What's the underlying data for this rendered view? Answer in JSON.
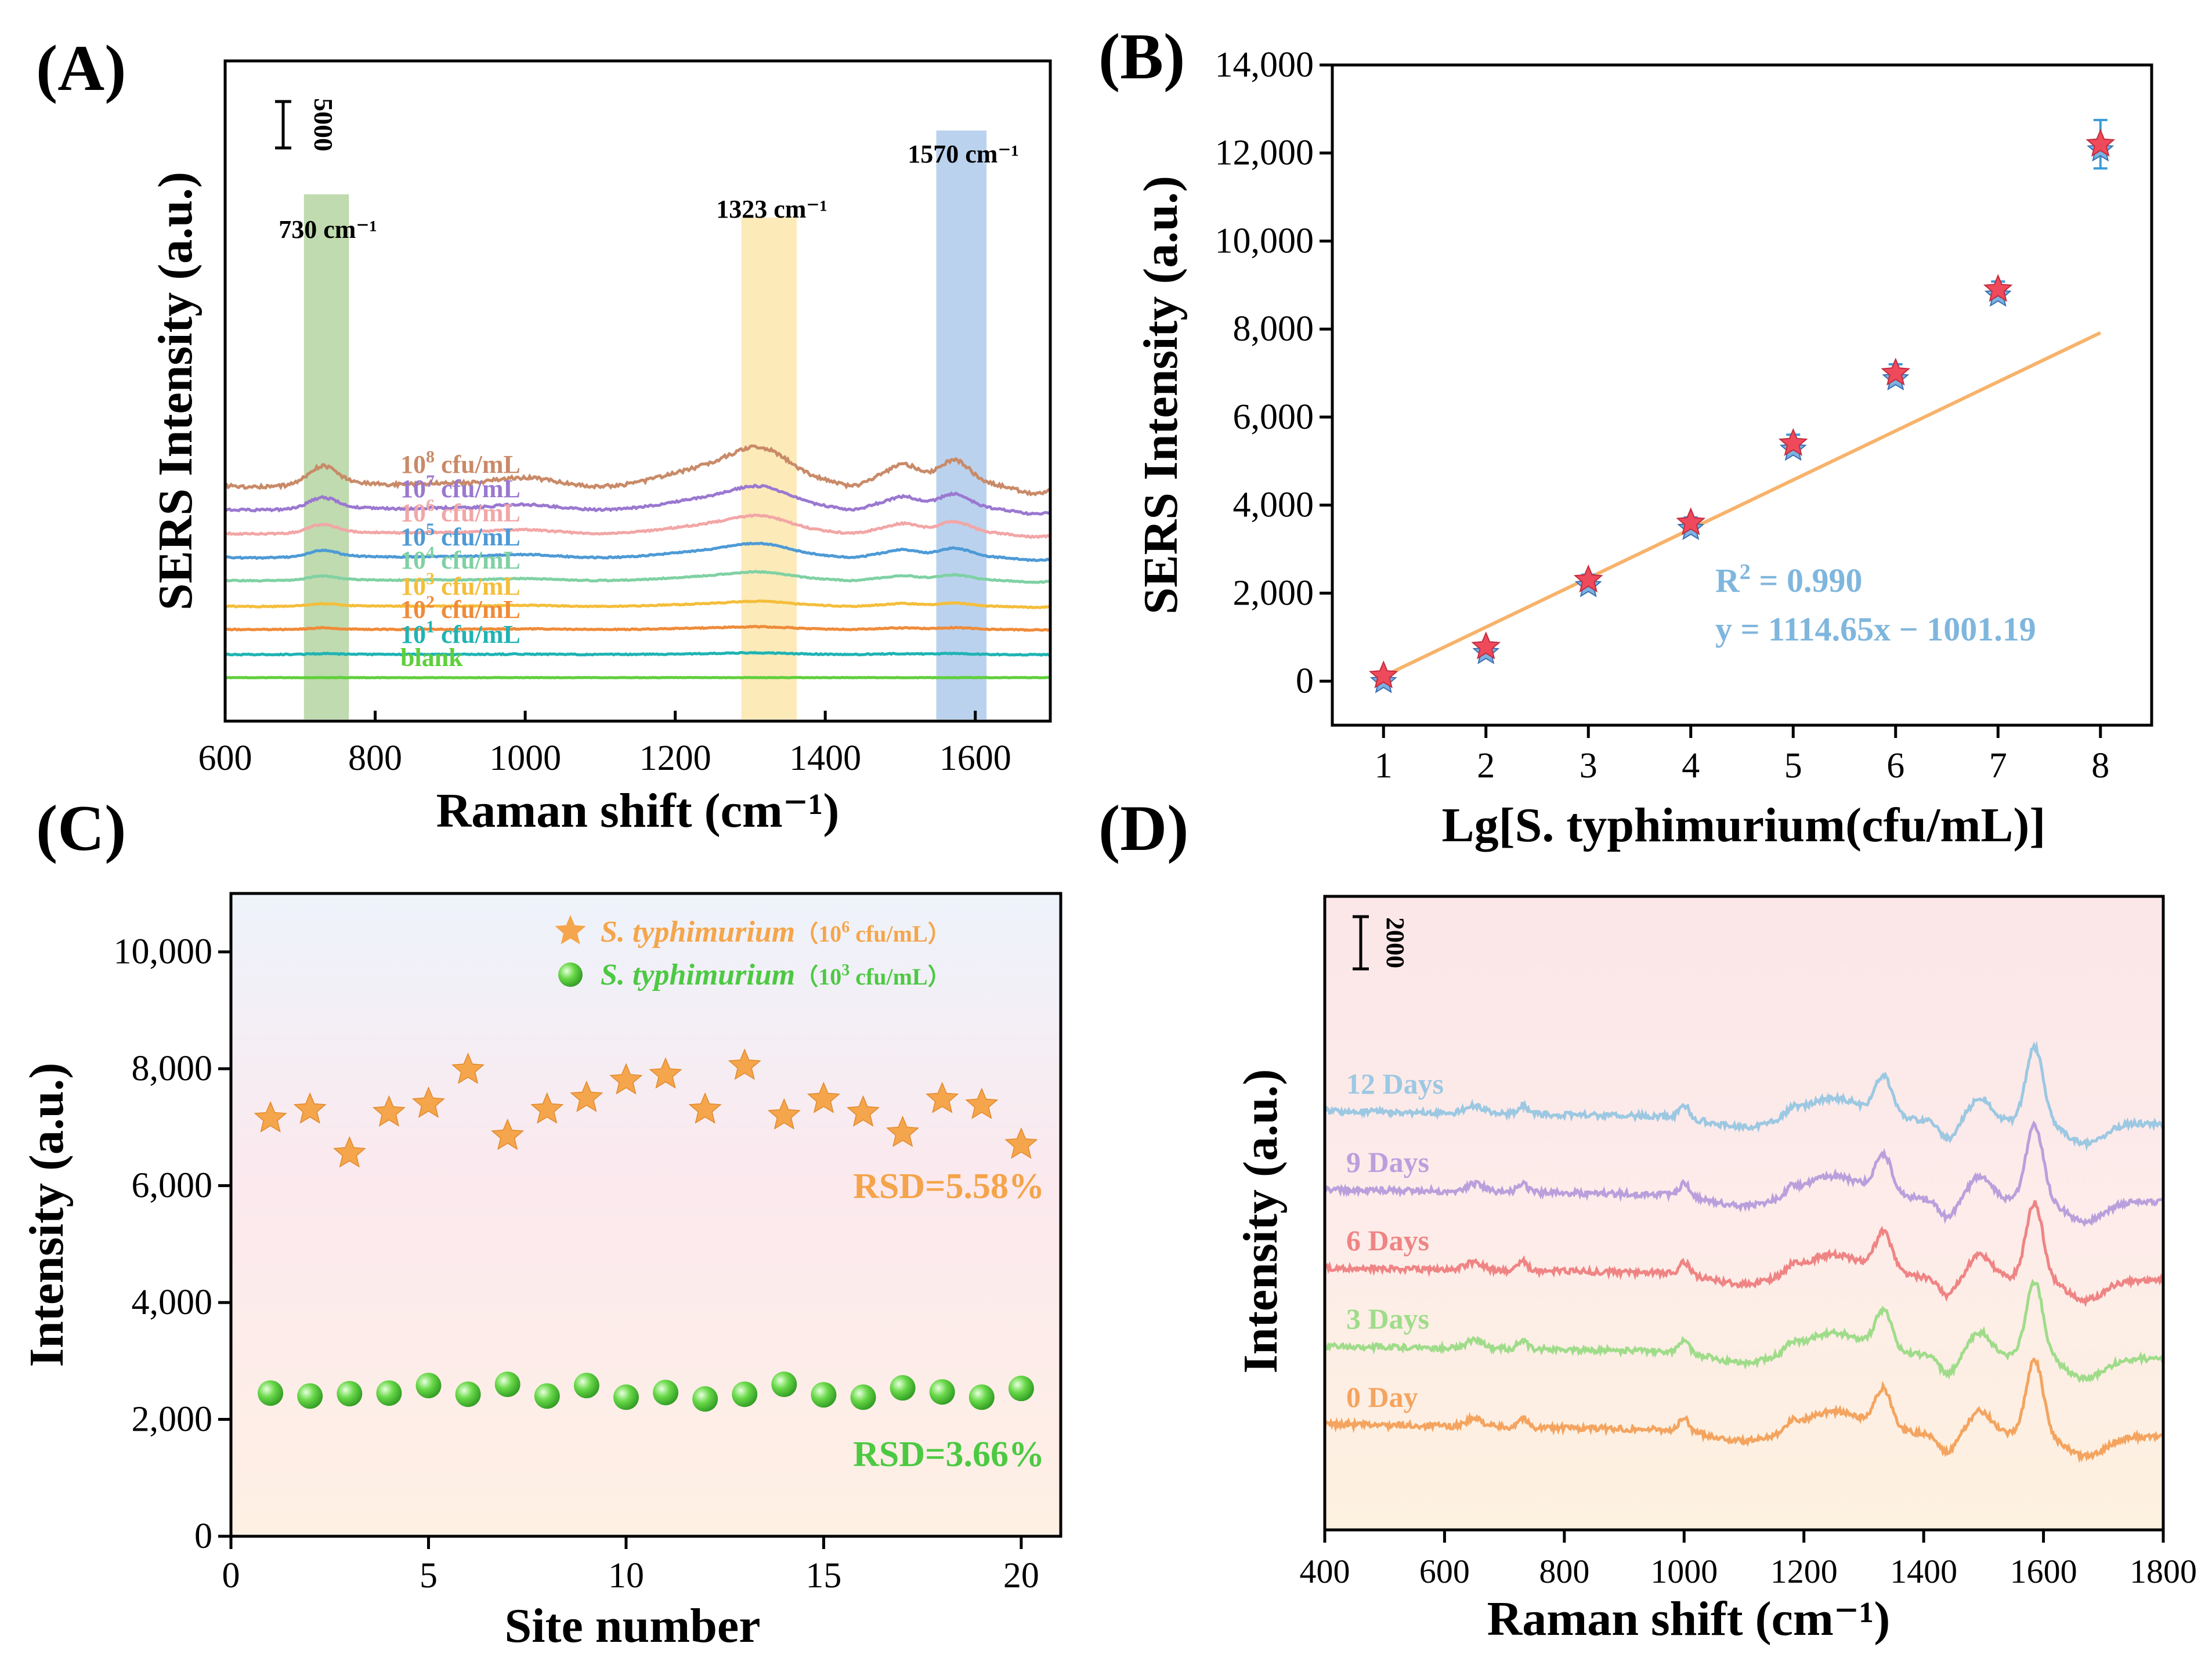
{
  "colors": {
    "green_band": "#a9cf94",
    "yellow_band": "#fbe3a1",
    "blue_band": "#a3c3e8",
    "fit_line": "#f7b36b",
    "stats_blue": "#7fb6dd",
    "star_orange": "#f5a54b",
    "ball_green": "#6ad94a",
    "rsd_orange": "#f4a44a",
    "rsd_green": "#4cc942"
  },
  "chart_data": [
    {
      "panel": "(A)",
      "type": "line",
      "xlabel": "Raman shift (cm⁻¹)",
      "ylabel": "SERS Intensity (a.u.)",
      "xlim": [
        600,
        1700
      ],
      "xticks": [
        "600",
        "800",
        "1000",
        "1200",
        "1400",
        "1600"
      ],
      "scale_bar_label": "5000",
      "scale_bar_value": 5000,
      "bands": [
        {
          "label": "730 cm⁻¹",
          "center": 730,
          "range": [
            705,
            765
          ],
          "color": "#a9cf94"
        },
        {
          "label": "1323 cm⁻¹",
          "center": 1323,
          "range": [
            1288,
            1362
          ],
          "color": "#fbe3a1"
        },
        {
          "label": "1570 cm⁻¹",
          "center": 1570,
          "range": [
            1548,
            1615
          ],
          "color": "#a3c3e8"
        }
      ],
      "series": [
        {
          "name": "blank",
          "base": "",
          "exp": "",
          "unit": "blank",
          "color": "#5fcf3a",
          "offset": 0,
          "amp": 0.0
        },
        {
          "name": "10^1 cfu/mL",
          "base": "10",
          "exp": "1",
          "unit": "cfu/mL",
          "color": "#1fb3b3",
          "offset": 2500,
          "amp": 0.04
        },
        {
          "name": "10^2 cfu/mL",
          "base": "10",
          "exp": "2",
          "unit": "cfu/mL",
          "color": "#ef8b3a",
          "offset": 5200,
          "amp": 0.07
        },
        {
          "name": "10^3 cfu/mL",
          "base": "10",
          "exp": "3",
          "unit": "cfu/mL",
          "color": "#f4be3a",
          "offset": 7700,
          "amp": 0.13
        },
        {
          "name": "10^4 cfu/mL",
          "base": "10",
          "exp": "4",
          "unit": "cfu/mL",
          "color": "#7fd1a3",
          "offset": 10500,
          "amp": 0.22
        },
        {
          "name": "10^5 cfu/mL",
          "base": "10",
          "exp": "5",
          "unit": "cfu/mL",
          "color": "#4d9ad6",
          "offset": 13000,
          "amp": 0.36
        },
        {
          "name": "10^6 cfu/mL",
          "base": "10",
          "exp": "6",
          "unit": "cfu/mL",
          "color": "#f2a6a6",
          "offset": 15600,
          "amp": 0.46
        },
        {
          "name": "10^7 cfu/mL",
          "base": "10",
          "exp": "7",
          "unit": "cfu/mL",
          "color": "#9a78d0",
          "offset": 18200,
          "amp": 0.6
        },
        {
          "name": "10^8 cfu/mL",
          "base": "10",
          "exp": "8",
          "unit": "cfu/mL",
          "color": "#c98a68",
          "offset": 20800,
          "amp": 1.0
        }
      ]
    },
    {
      "panel": "(B)",
      "type": "scatter",
      "xlabel": "Lg[S. typhimurium(cfu/mL)]",
      "ylabel": "SERS Intensity (a.u.)",
      "xlim": [
        0.5,
        8.5
      ],
      "ylim": [
        -1000,
        14000
      ],
      "xticks": [
        "1",
        "2",
        "3",
        "4",
        "5",
        "6",
        "7",
        "8"
      ],
      "yticks": [
        "0",
        "2,000",
        "4,000",
        "6,000",
        "8,000",
        "10,000",
        "12,000",
        "14,000"
      ],
      "ytick_values": [
        0,
        2000,
        4000,
        6000,
        8000,
        10000,
        12000,
        14000
      ],
      "x": [
        1,
        2,
        3,
        4,
        5,
        6,
        7,
        8
      ],
      "y": [
        120,
        780,
        2300,
        3600,
        5400,
        7000,
        8900,
        12200
      ],
      "yerr": [
        100,
        100,
        120,
        120,
        200,
        200,
        180,
        550
      ],
      "fit": {
        "slope": 1114.65,
        "intercept": -1001.19,
        "x_range": [
          1,
          8
        ]
      },
      "r2_base": "R",
      "r2_exp": "2",
      "r2_value": " = 0.990",
      "equation": "y = 1114.65x − 1001.19"
    },
    {
      "panel": "(C)",
      "type": "scatter",
      "xlabel": "Site number",
      "ylabel": "Intensity (a.u.)",
      "xlim": [
        0,
        21
      ],
      "ylim": [
        0,
        11000
      ],
      "xticks": [
        "0",
        "5",
        "10",
        "15",
        "20"
      ],
      "xtick_values": [
        0,
        5,
        10,
        15,
        20
      ],
      "yticks": [
        "0",
        "2,000",
        "4,000",
        "6,000",
        "8,000",
        "10,000"
      ],
      "ytick_values": [
        0,
        2000,
        4000,
        6000,
        8000,
        10000
      ],
      "x": [
        1,
        2,
        3,
        4,
        5,
        6,
        7,
        8,
        9,
        10,
        11,
        12,
        13,
        14,
        15,
        16,
        17,
        18,
        19,
        20
      ],
      "series": [
        {
          "name": "S. typhimurium",
          "conc_open": "（10",
          "conc_exp": "6",
          "conc_close": " cfu/mL）",
          "marker": "star",
          "values": [
            7150,
            7300,
            6550,
            7250,
            7400,
            7980,
            6850,
            7300,
            7500,
            7800,
            7900,
            7300,
            8050,
            7200,
            7480,
            7250,
            6900,
            7480,
            7380,
            6700
          ],
          "rsd": "RSD=5.58%"
        },
        {
          "name": "S. typhimurium",
          "conc_open": "（10",
          "conc_exp": "3",
          "conc_close": " cfu/mL）",
          "marker": "sphere",
          "values": [
            2450,
            2400,
            2440,
            2450,
            2580,
            2430,
            2600,
            2400,
            2580,
            2380,
            2460,
            2350,
            2430,
            2600,
            2420,
            2380,
            2540,
            2470,
            2380,
            2530
          ],
          "rsd": "RSD=3.66%"
        }
      ]
    },
    {
      "panel": "(D)",
      "type": "line",
      "xlabel": "Raman shift (cm⁻¹)",
      "ylabel": "Intensity (a.u.)",
      "xlim": [
        400,
        1800
      ],
      "xticks": [
        "400",
        "600",
        "800",
        "1000",
        "1200",
        "1400",
        "1600",
        "1800"
      ],
      "scale_bar_label": "2000",
      "scale_bar_value": 2000,
      "series": [
        {
          "name": "0 Day",
          "color": "#f4a45f",
          "offset": 0
        },
        {
          "name": "3 Days",
          "color": "#9fdc8a",
          "offset": 3000
        },
        {
          "name": "6 Days",
          "color": "#ef8484",
          "offset": 6000
        },
        {
          "name": "9 Days",
          "color": "#b9a0dc",
          "offset": 9000
        },
        {
          "name": "12 Days",
          "color": "#9cc8e2",
          "offset": 12000
        }
      ]
    }
  ]
}
